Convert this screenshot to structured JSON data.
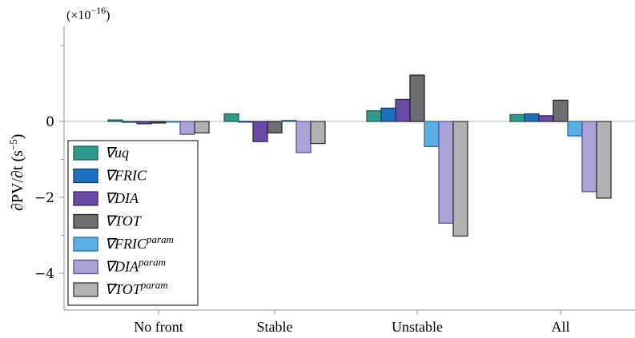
{
  "chart_data": {
    "type": "bar",
    "scale_label": {
      "base": "(×10",
      "exponent": "−16",
      "close": ")"
    },
    "ylabel": {
      "main": "∂PV/∂t (s",
      "exponent": "−5",
      "close": ")"
    },
    "ylim": [
      -5,
      2.6
    ],
    "yticks": [
      {
        "value": 0,
        "label": "0"
      },
      {
        "value": -2,
        "label": "−2"
      },
      {
        "value": -4,
        "label": "−4"
      }
    ],
    "categories": [
      "No front",
      "Stable",
      "Unstable",
      "All"
    ],
    "series": [
      {
        "name": "∇uq",
        "name_base": "∇uq",
        "name_sup": "",
        "color": "#2e9a8c",
        "stroke": "#1c5f57",
        "values": [
          0.04,
          0.2,
          0.28,
          0.18
        ]
      },
      {
        "name": "∇FRIC",
        "name_base": "∇FRIC",
        "name_sup": "",
        "color": "#1f6fbe",
        "stroke": "#0f3f74",
        "values": [
          -0.02,
          0.0,
          0.35,
          0.2
        ]
      },
      {
        "name": "∇DIA",
        "name_base": "∇DIA",
        "name_sup": "",
        "color": "#6a4aa6",
        "stroke": "#3b2466",
        "values": [
          -0.06,
          -0.53,
          0.58,
          0.15
        ]
      },
      {
        "name": "∇TOT",
        "name_base": "∇TOT",
        "name_sup": "",
        "color": "#6e6e72",
        "stroke": "#222222",
        "values": [
          -0.04,
          -0.3,
          1.22,
          0.56
        ]
      },
      {
        "name": "∇FRIC^param",
        "name_base": "∇FRIC",
        "name_sup": "param",
        "color": "#5aaee2",
        "stroke": "#2c6fa0",
        "values": [
          -0.01,
          0.03,
          -0.66,
          -0.38
        ]
      },
      {
        "name": "∇DIA^param",
        "name_base": "∇DIA",
        "name_sup": "param",
        "color": "#a9a3d6",
        "stroke": "#5c4f9a",
        "values": [
          -0.34,
          -0.82,
          -2.68,
          -1.85
        ]
      },
      {
        "name": "∇TOT^param",
        "name_base": "∇TOT",
        "name_sup": "param",
        "color": "#b1b1b3",
        "stroke": "#333333",
        "values": [
          -0.3,
          -0.58,
          -3.02,
          -2.02
        ]
      }
    ],
    "legend_position": "bottom-left",
    "grid": false
  }
}
